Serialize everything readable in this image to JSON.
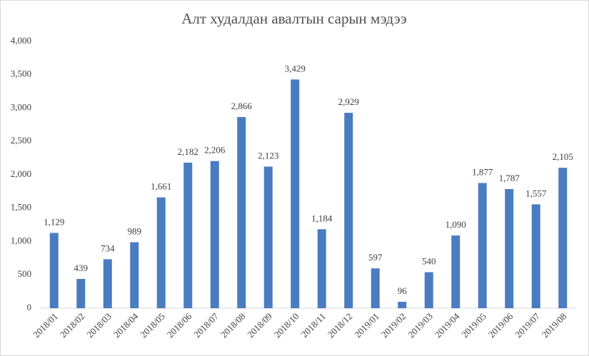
{
  "chart_data": {
    "type": "bar",
    "title": "Алт худалдан авалтын сарын мэдээ",
    "categories": [
      "2018/01",
      "2018/02",
      "2018/03",
      "2018/04",
      "2018/05",
      "2018/06",
      "2018/07",
      "2018/08",
      "2018/09",
      "2018/10",
      "2018/11",
      "2018/12",
      "2019/01",
      "2019/02",
      "2019/03",
      "2019/04",
      "2019/05",
      "2019/06",
      "2019/07",
      "2019/08"
    ],
    "values": [
      1129,
      439,
      734,
      989,
      1661,
      2182,
      2206,
      2866,
      2123,
      3429,
      1184,
      2929,
      597,
      96,
      540,
      1090,
      1877,
      1787,
      1557,
      2105
    ],
    "value_labels": [
      "1,129",
      "439",
      "734",
      "989",
      "1,661",
      "2,182",
      "2,206",
      "2,866",
      "2,123",
      "3,429",
      "1,184",
      "2,929",
      "597",
      "96",
      "540",
      "1,090",
      "1,877",
      "1,787",
      "1,557",
      "2,105"
    ],
    "color": "#4a7cc1",
    "ylim": [
      0,
      4000
    ],
    "yticks": [
      0,
      500,
      {
        "value": 1000,
        "label": "1,000"
      },
      {
        "value": 1500,
        "label": "1,500"
      },
      {
        "value": 2000,
        "label": "2,000"
      },
      {
        "value": 2500,
        "label": "2,500"
      },
      {
        "value": 3000,
        "label": "3,000"
      },
      {
        "value": 3500,
        "label": "3,500"
      },
      {
        "value": 4000,
        "label": "4,000"
      }
    ],
    "grid": false
  }
}
